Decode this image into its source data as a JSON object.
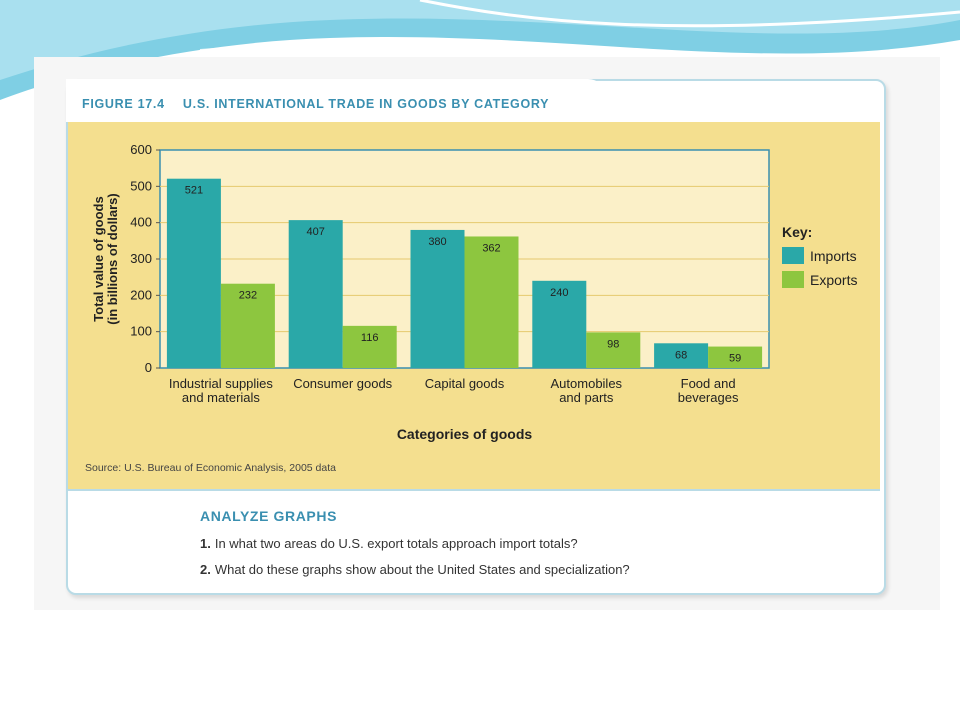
{
  "figure": {
    "number": "FIGURE 17.4",
    "title": "U.S. INTERNATIONAL TRADE IN GOODS BY CATEGORY",
    "source": "Source: U.S. Bureau of Economic Analysis, 2005 data"
  },
  "colors": {
    "imports": "#2aa8a8",
    "exports": "#8dc63f",
    "accent": "#3a8fb0",
    "chart_bg": "#f4df8f",
    "plot_bg": "#fbf0c8"
  },
  "chart_data": {
    "type": "bar",
    "categories": [
      "Industrial supplies\nand materials",
      "Consumer goods",
      "Capital goods",
      "Automobiles\nand parts",
      "Food and\nbeverages"
    ],
    "series": [
      {
        "name": "Imports",
        "values": [
          521,
          407,
          380,
          240,
          68
        ]
      },
      {
        "name": "Exports",
        "values": [
          232,
          116,
          362,
          98,
          59
        ]
      }
    ],
    "ylabel": "Total value of goods\n(in billions of dollars)",
    "xlabel": "Categories of goods",
    "ylim": [
      0,
      600
    ],
    "yticks": [
      0,
      100,
      200,
      300,
      400,
      500,
      600
    ],
    "legend_title": "Key:",
    "legend_position": "right",
    "grid": true
  },
  "analyze": {
    "heading": "ANALYZE GRAPHS",
    "questions": [
      {
        "num": "1.",
        "text": "In what two areas do U.S. export totals approach import totals?"
      },
      {
        "num": "2.",
        "text": "What do these graphs show about the United States and specialization?"
      }
    ]
  }
}
